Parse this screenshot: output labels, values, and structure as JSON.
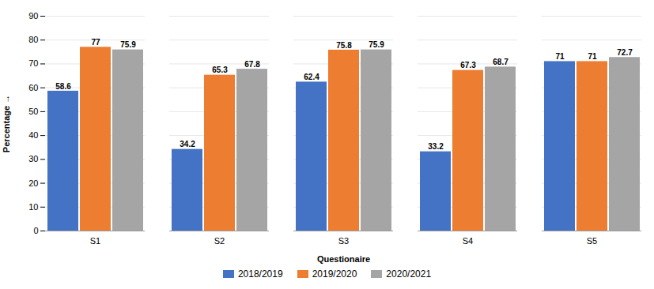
{
  "chart_data": {
    "type": "bar",
    "categories": [
      "S1",
      "S2",
      "S3",
      "S4",
      "S5"
    ],
    "series": [
      {
        "name": "2018/2019",
        "color": "#4472C4",
        "values": [
          58.6,
          34.2,
          62.4,
          33.2,
          71
        ]
      },
      {
        "name": "2019/2020",
        "color": "#ED7D31",
        "values": [
          77,
          65.3,
          75.8,
          67.3,
          71
        ]
      },
      {
        "name": "2020/2021",
        "color": "#A5A5A5",
        "values": [
          75.9,
          67.8,
          75.9,
          68.7,
          72.7
        ]
      }
    ],
    "xlabel": "Questionaire",
    "ylabel": "Percentage",
    "ylim": [
      0,
      90
    ],
    "yticks": [
      0,
      10,
      20,
      30,
      40,
      50,
      60,
      70,
      80,
      90
    ],
    "grid": true,
    "legend": "bottom",
    "data_labels": true
  }
}
